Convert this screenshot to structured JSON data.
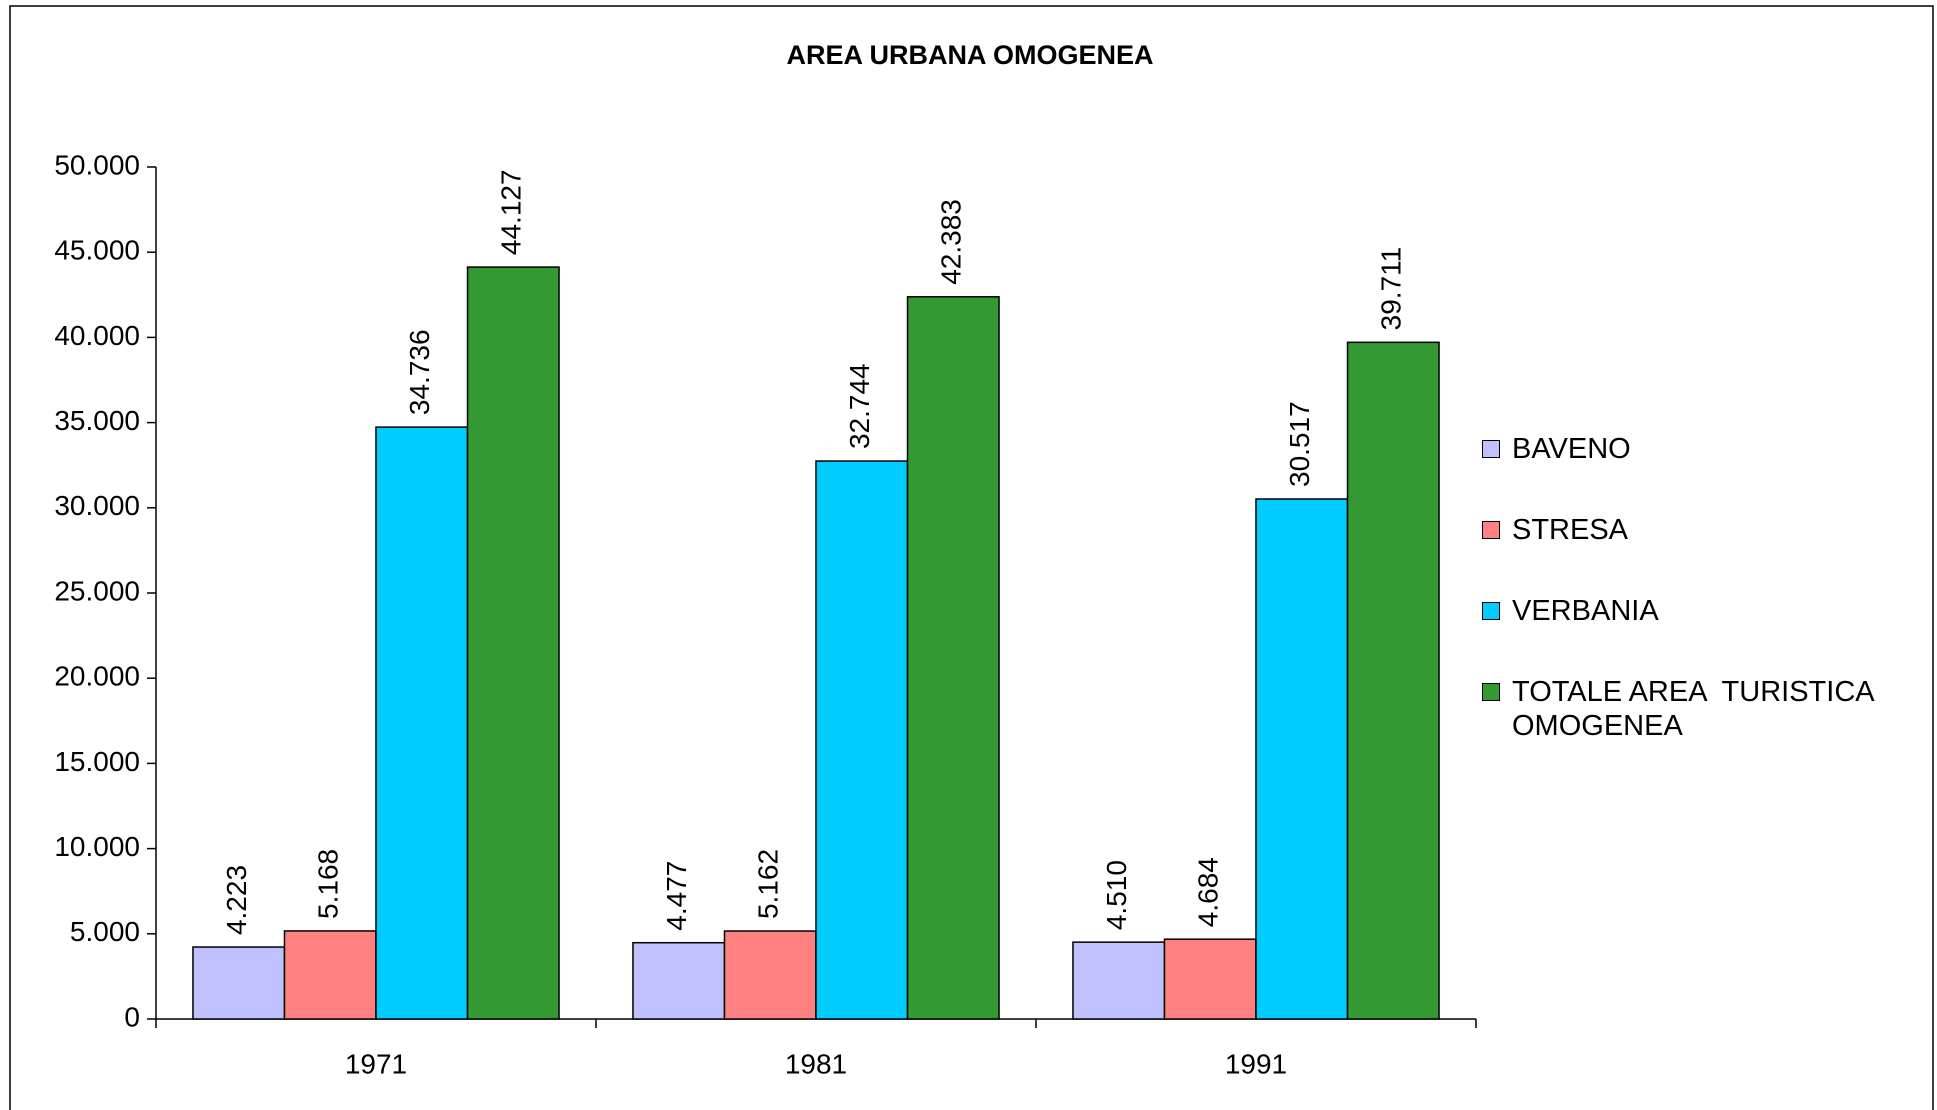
{
  "chart_data": {
    "type": "bar",
    "title": "AREA URBANA OMOGENEA",
    "categories": [
      "1971",
      "1981",
      "1991"
    ],
    "series": [
      {
        "name": "BAVENO",
        "color": "#c0c0ff",
        "values": [
          4223,
          4477,
          4510
        ],
        "value_labels": [
          "4.223",
          "4.477",
          "4.510"
        ]
      },
      {
        "name": "STRESA",
        "color": "#ff8080",
        "values": [
          5168,
          5162,
          4684
        ],
        "value_labels": [
          "5.168",
          "5.162",
          "4.684"
        ]
      },
      {
        "name": "VERBANIA",
        "color": "#00ccff",
        "values": [
          34736,
          32744,
          30517
        ],
        "value_labels": [
          "34.736",
          "32.744",
          "30.517"
        ]
      },
      {
        "name": "TOTALE AREA  TURISTICA OMOGENEA",
        "color": "#339933",
        "values": [
          44127,
          42383,
          39711
        ],
        "value_labels": [
          "44.127",
          "42.383",
          "39.711"
        ]
      }
    ],
    "ylim": [
      0,
      50000
    ],
    "yticks": [
      0,
      {
        "value": 5000,
        "label": "5.000"
      },
      {
        "value": 10000,
        "label": "10.000"
      },
      {
        "value": 15000,
        "label": "15.000"
      },
      {
        "value": 20000,
        "label": "20.000"
      },
      {
        "value": 25000,
        "label": "25.000"
      },
      {
        "value": 30000,
        "label": "30.000"
      },
      {
        "value": 35000,
        "label": "35.000"
      },
      {
        "value": 40000,
        "label": "40.000"
      },
      {
        "value": 45000,
        "label": "45.000"
      },
      {
        "value": 50000,
        "label": "50.000"
      }
    ],
    "legend": "right"
  }
}
